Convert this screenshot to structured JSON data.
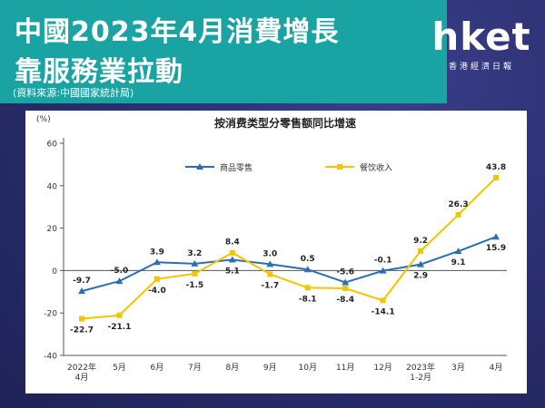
{
  "header": {
    "title_line1": "中國2023年4月消費增長",
    "title_line2": "靠服務業拉動",
    "source": "(資料來源:中國國家統計局)"
  },
  "logo": {
    "name": "hket",
    "subtitle": "香港經濟日報"
  },
  "colors": {
    "header_bg": "#1aa3a3",
    "series_goods": "#2a6fb3",
    "series_catering": "#f5c400"
  },
  "chart_data": {
    "type": "line",
    "title": "按消费类型分零售额同比增速",
    "ylabel": "(%)",
    "xlabel": "",
    "ylim": [
      -40,
      60
    ],
    "yticks": [
      -40,
      -20,
      0,
      20,
      40,
      60
    ],
    "grid": false,
    "legend_position": "top-center",
    "categories": [
      [
        "2022年",
        "4月"
      ],
      [
        "5月"
      ],
      [
        "6月"
      ],
      [
        "7月"
      ],
      [
        "8月"
      ],
      [
        "9月"
      ],
      [
        "10月"
      ],
      [
        "11月"
      ],
      [
        "12月"
      ],
      [
        "2023年",
        "1-2月"
      ],
      [
        "3月"
      ],
      [
        "4月"
      ]
    ],
    "series": [
      {
        "name": "商品零售",
        "color": "#2a6fb3",
        "marker": "triangle",
        "values": [
          -9.7,
          -5.0,
          3.9,
          3.2,
          5.1,
          3.0,
          0.5,
          -5.6,
          -0.1,
          2.9,
          9.1,
          15.9
        ]
      },
      {
        "name": "餐饮收入",
        "color": "#f5c400",
        "marker": "square",
        "values": [
          -22.7,
          -21.1,
          -4.0,
          -1.5,
          8.4,
          -1.7,
          -8.1,
          -8.4,
          -14.1,
          9.2,
          26.3,
          43.8
        ]
      }
    ]
  }
}
